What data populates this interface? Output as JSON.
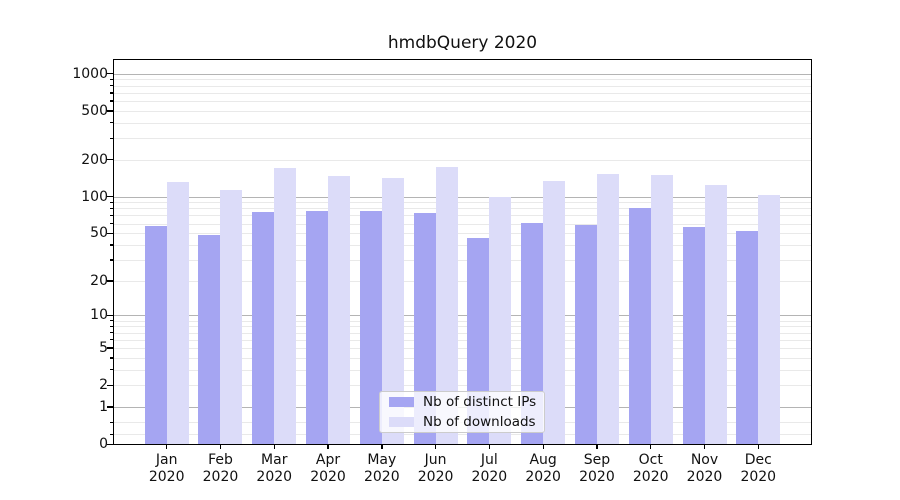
{
  "chart_data": {
    "type": "bar",
    "title": "hmdbQuery 2020",
    "categories": [
      "Jan",
      "Feb",
      "Mar",
      "Apr",
      "May",
      "Jun",
      "Jul",
      "Aug",
      "Sep",
      "Oct",
      "Nov",
      "Dec"
    ],
    "category_year": "2020",
    "series": [
      {
        "name": "Nb of distinct IPs",
        "color": "#a5a5f2",
        "values": [
          57,
          48,
          75,
          76,
          76,
          73,
          46,
          61,
          58,
          80,
          56,
          52
        ]
      },
      {
        "name": "Nb of downloads",
        "color": "#dcdcf9",
        "values": [
          131,
          113,
          171,
          148,
          142,
          176,
          100,
          135,
          153,
          149,
          125,
          104
        ]
      }
    ],
    "yscale": "log10(value+1)",
    "ylim": [
      0,
      1290
    ],
    "yticks": [
      0,
      1,
      2,
      5,
      10,
      20,
      50,
      100,
      200,
      500,
      1000
    ],
    "major_gridline_values": [
      1,
      10,
      100,
      1000
    ],
    "minor_gridline_values": [
      0.2,
      0.5,
      2,
      3,
      4,
      5,
      6,
      7,
      8,
      9,
      20,
      30,
      40,
      50,
      60,
      70,
      80,
      90,
      200,
      300,
      400,
      500,
      600,
      700,
      800,
      900
    ],
    "xlabel": "",
    "ylabel": "",
    "grid": true,
    "legend_position": "lower center inside plot"
  }
}
